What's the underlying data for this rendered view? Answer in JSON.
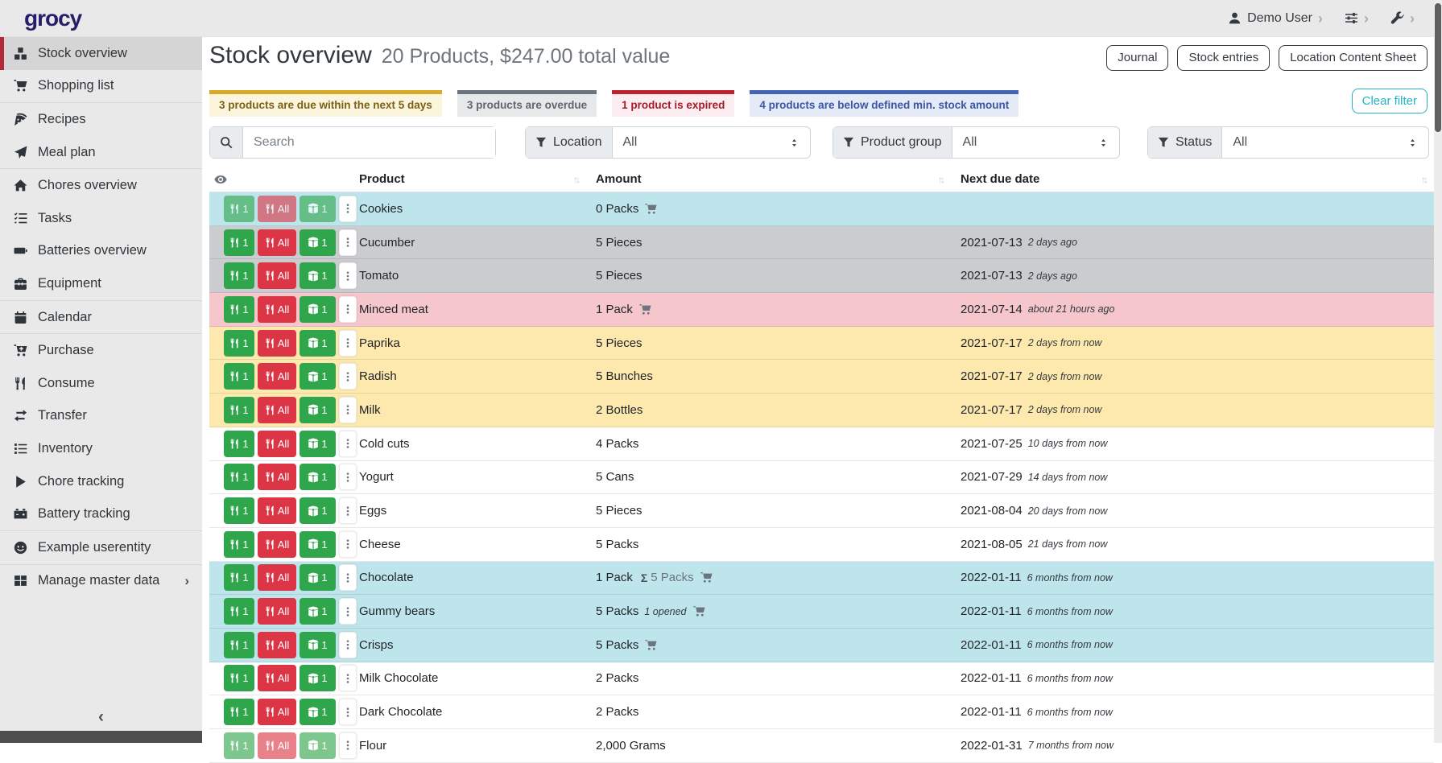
{
  "topbar": {
    "logo": "grocy",
    "user_label": "Demo User"
  },
  "sidebar": {
    "collapse_icon": "‹",
    "items": [
      {
        "label": "Stock overview",
        "icon": "boxes",
        "active": true
      },
      {
        "label": "Shopping list",
        "icon": "cart",
        "sep_after": true
      },
      {
        "label": "Recipes",
        "icon": "pizza"
      },
      {
        "label": "Meal plan",
        "icon": "plane",
        "sep_after": true
      },
      {
        "label": "Chores overview",
        "icon": "home"
      },
      {
        "label": "Tasks",
        "icon": "tasks"
      },
      {
        "label": "Batteries overview",
        "icon": "battery"
      },
      {
        "label": "Equipment",
        "icon": "toolbox",
        "sep_after": true
      },
      {
        "label": "Calendar",
        "icon": "calendar",
        "sep_after": true
      },
      {
        "label": "Purchase",
        "icon": "cart-plus"
      },
      {
        "label": "Consume",
        "icon": "utensils"
      },
      {
        "label": "Transfer",
        "icon": "exchange"
      },
      {
        "label": "Inventory",
        "icon": "list"
      },
      {
        "label": "Chore tracking",
        "icon": "play"
      },
      {
        "label": "Battery tracking",
        "icon": "car-battery",
        "sep_after": true
      },
      {
        "label": "Example userentity",
        "icon": "smile",
        "sep_after": true
      },
      {
        "label": "Manage master data",
        "icon": "table",
        "chevron": true
      }
    ]
  },
  "page": {
    "title": "Stock overview",
    "subtitle": "20 Products, $247.00 total value",
    "action_buttons": [
      "Journal",
      "Stock entries",
      "Location Content Sheet"
    ],
    "status_filters": [
      {
        "label": "3 products are due within the next 5 days",
        "variant": "warning"
      },
      {
        "label": "3 products are overdue",
        "variant": "secondary"
      },
      {
        "label": "1 product is expired",
        "variant": "danger"
      },
      {
        "label": "4 products are below defined min. stock amount",
        "variant": "belowmin"
      }
    ],
    "clear_filter_label": "Clear filter",
    "search_placeholder": "Search",
    "filter_groups": [
      {
        "label": "Location",
        "value": "All"
      },
      {
        "label": "Product group",
        "value": "All"
      },
      {
        "label": "Status",
        "value": "All"
      }
    ]
  },
  "table": {
    "columns": [
      {
        "label": "Product",
        "sortable": true
      },
      {
        "label": "Amount",
        "sortable": true
      },
      {
        "label": "Next due date",
        "sortable": true
      }
    ],
    "row_actions": {
      "consume_one": "1",
      "consume_all": "All",
      "open_one": "1"
    },
    "rows": [
      {
        "product": "Cookies",
        "amount": "0 Packs",
        "cart": true,
        "date": "",
        "relative": "",
        "variant": "info",
        "disabled": true
      },
      {
        "product": "Cucumber",
        "amount": "5 Pieces",
        "cart": false,
        "date": "2021-07-13",
        "relative": "2 days ago",
        "variant": "secondary"
      },
      {
        "product": "Tomato",
        "amount": "5 Pieces",
        "cart": false,
        "date": "2021-07-13",
        "relative": "2 days ago",
        "variant": "secondary"
      },
      {
        "product": "Minced meat",
        "amount": "1 Pack",
        "cart": true,
        "date": "2021-07-14",
        "relative": "about 21 hours ago",
        "variant": "danger"
      },
      {
        "product": "Paprika",
        "amount": "5 Pieces",
        "cart": false,
        "date": "2021-07-17",
        "relative": "2 days from now",
        "variant": "warning"
      },
      {
        "product": "Radish",
        "amount": "5 Bunches",
        "cart": false,
        "date": "2021-07-17",
        "relative": "2 days from now",
        "variant": "warning"
      },
      {
        "product": "Milk",
        "amount": "2 Bottles",
        "cart": false,
        "date": "2021-07-17",
        "relative": "2 days from now",
        "variant": "warning"
      },
      {
        "product": "Cold cuts",
        "amount": "4 Packs",
        "cart": false,
        "date": "2021-07-25",
        "relative": "10 days from now",
        "variant": "none"
      },
      {
        "product": "Yogurt",
        "amount": "5 Cans",
        "cart": false,
        "date": "2021-07-29",
        "relative": "14 days from now",
        "variant": "none"
      },
      {
        "product": "Eggs",
        "amount": "5 Pieces",
        "cart": false,
        "date": "2021-08-04",
        "relative": "20 days from now",
        "variant": "none"
      },
      {
        "product": "Cheese",
        "amount": "5 Packs",
        "cart": false,
        "date": "2021-08-05",
        "relative": "21 days from now",
        "variant": "none"
      },
      {
        "product": "Chocolate",
        "amount": "1 Pack",
        "sigma": "Σ",
        "aggregate": "5 Packs",
        "cart": true,
        "date": "2022-01-11",
        "relative": "6 months from now",
        "variant": "info"
      },
      {
        "product": "Gummy bears",
        "amount": "5 Packs",
        "note": "1 opened",
        "cart": true,
        "date": "2022-01-11",
        "relative": "6 months from now",
        "variant": "info"
      },
      {
        "product": "Crisps",
        "amount": "5 Packs",
        "cart": true,
        "date": "2022-01-11",
        "relative": "6 months from now",
        "variant": "info"
      },
      {
        "product": "Milk Chocolate",
        "amount": "2 Packs",
        "cart": false,
        "date": "2022-01-11",
        "relative": "6 months from now",
        "variant": "none"
      },
      {
        "product": "Dark Chocolate",
        "amount": "2 Packs",
        "cart": false,
        "date": "2022-01-11",
        "relative": "6 months from now",
        "variant": "none"
      },
      {
        "product": "Flour",
        "amount": "2,000 Grams",
        "cart": false,
        "date": "2022-01-31",
        "relative": "7 months from now",
        "variant": "none",
        "disabled": true
      }
    ]
  },
  "colors": {
    "logo": "#241f6b",
    "accent_red": "#b02a37",
    "success": "#2fa64b",
    "danger": "#dc3545",
    "row_info": "#bee5eb",
    "row_secondary": "#cacccf",
    "row_warning": "#fde9ae",
    "row_danger": "#f5c6cb",
    "clear_filter": "#24b3c4",
    "badge_warning_border": "#d8a927",
    "badge_warning_bg": "#fcf5dd",
    "badge_warning_text": "#7a6116",
    "badge_secondary_border": "#6c757d",
    "badge_secondary_bg": "#e7e8ea",
    "badge_secondary_text": "#5f666d",
    "badge_danger_border": "#bd202f",
    "badge_danger_bg": "#fceef0",
    "badge_danger_text": "#a21c29",
    "badge_belowmin_border": "#4565b4",
    "badge_belowmin_bg": "#e5eaf7",
    "badge_belowmin_text": "#3a56a5"
  }
}
